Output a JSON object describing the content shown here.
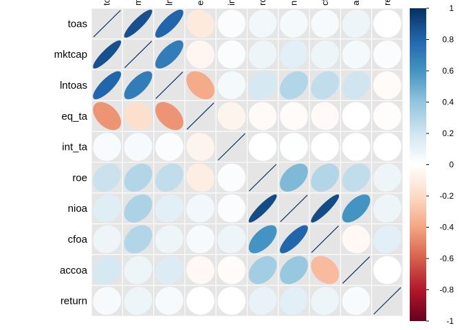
{
  "chart_data": {
    "type": "heatmap",
    "method": "ellipse",
    "variables": [
      "toas",
      "mktcap",
      "lntoas",
      "eq_ta",
      "int_ta",
      "roe",
      "nioa",
      "cfoa",
      "accoa",
      "return"
    ],
    "matrix": [
      [
        1.0,
        0.88,
        0.8,
        -0.12,
        0.02,
        0.06,
        0.05,
        0.04,
        0.08,
        0.0
      ],
      [
        0.88,
        1.0,
        0.7,
        -0.05,
        0.02,
        0.08,
        0.12,
        0.08,
        0.05,
        0.02
      ],
      [
        0.8,
        0.7,
        1.0,
        -0.38,
        0.05,
        0.18,
        0.3,
        0.25,
        0.2,
        -0.02
      ],
      [
        -0.45,
        -0.18,
        -0.45,
        1.0,
        -0.06,
        -0.03,
        -0.02,
        -0.03,
        0.0,
        -0.01
      ],
      [
        0.03,
        0.04,
        0.02,
        -0.06,
        1.0,
        0.0,
        0.01,
        0.0,
        0.0,
        0.0
      ],
      [
        0.22,
        0.3,
        0.25,
        -0.1,
        0.02,
        1.0,
        0.45,
        0.3,
        0.25,
        0.08
      ],
      [
        0.14,
        0.32,
        0.12,
        0.06,
        0.02,
        0.9,
        1.0,
        0.9,
        0.6,
        0.08
      ],
      [
        0.08,
        0.3,
        0.08,
        0.04,
        0.08,
        0.6,
        0.8,
        1.0,
        -0.04,
        0.12
      ],
      [
        0.18,
        0.08,
        0.15,
        -0.04,
        -0.02,
        0.35,
        0.38,
        -0.32,
        1.0,
        0.0
      ],
      [
        0.04,
        0.08,
        0.04,
        0.0,
        0.0,
        0.1,
        0.12,
        0.08,
        0.03,
        1.0
      ]
    ],
    "colorbar": {
      "range": [
        -1,
        1
      ],
      "ticks": [
        "1",
        "0.8",
        "0.6",
        "0.4",
        "0.2",
        "0",
        "-0.2",
        "-0.4",
        "-0.6",
        "-0.8",
        "-1"
      ],
      "colors": [
        "#67001F",
        "#B2182B",
        "#D6604D",
        "#F4A582",
        "#FDDBC7",
        "#FFFFFF",
        "#D1E5F0",
        "#92C5DE",
        "#4393C3",
        "#2166AC",
        "#053061"
      ]
    },
    "grid_color": "#ffffff",
    "cell_background": "#e5e5e5",
    "diagonal_line_color": "#053061"
  }
}
